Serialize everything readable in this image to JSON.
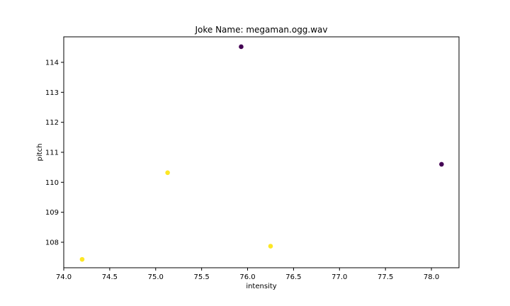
{
  "chart_data": {
    "type": "scatter",
    "title": "Joke Name: megaman.ogg.wav",
    "xlabel": "intensity",
    "ylabel": "pitch",
    "xlim": [
      74.0,
      78.3
    ],
    "ylim": [
      107.15,
      114.85
    ],
    "xticks": [
      "74.0",
      "74.5",
      "75.0",
      "75.5",
      "76.0",
      "76.5",
      "77.0",
      "77.5",
      "78.0"
    ],
    "yticks": [
      "108",
      "109",
      "110",
      "111",
      "112",
      "113",
      "114"
    ],
    "grid": false,
    "legend": "none",
    "colors": {
      "purple": "#440154",
      "yellow": "#fde725"
    },
    "points": [
      {
        "x": 75.93,
        "y": 114.52,
        "color": "#440154"
      },
      {
        "x": 78.11,
        "y": 110.6,
        "color": "#440154"
      },
      {
        "x": 75.13,
        "y": 110.32,
        "color": "#fde725"
      },
      {
        "x": 76.25,
        "y": 107.87,
        "color": "#fde725"
      },
      {
        "x": 74.2,
        "y": 107.43,
        "color": "#fde725"
      }
    ]
  }
}
